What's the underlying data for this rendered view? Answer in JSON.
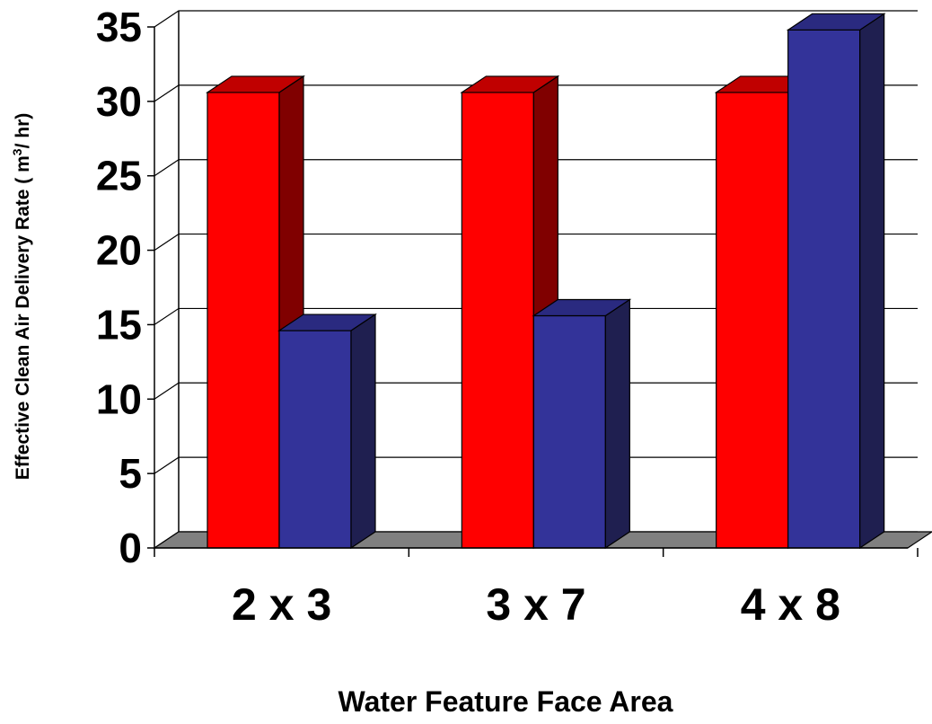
{
  "chart_data": {
    "type": "bar",
    "categories": [
      "2 x 3",
      "3 x 7",
      "4 x 8"
    ],
    "series": [
      {
        "values": [
          30.6,
          30.6,
          30.6
        ],
        "color": "#FF0000",
        "side_color": "#800000",
        "top_color": "#C00000"
      },
      {
        "values": [
          14.6,
          15.6,
          34.8
        ],
        "color": "#333399",
        "side_color": "#1F1F50",
        "top_color": "#2A2A80"
      }
    ],
    "xlabel": "Water Feature Face Area",
    "ylabel_main": "Effective Clean Air Delivery Rate ( m",
    "ylabel_sup": "3",
    "ylabel_end": "/ hr)",
    "ylim": [
      0,
      35
    ],
    "yticks": [
      0,
      5,
      10,
      15,
      20,
      25,
      30,
      35
    ],
    "grid": true,
    "style": "3d-clustered",
    "floor_color": "#808080"
  }
}
